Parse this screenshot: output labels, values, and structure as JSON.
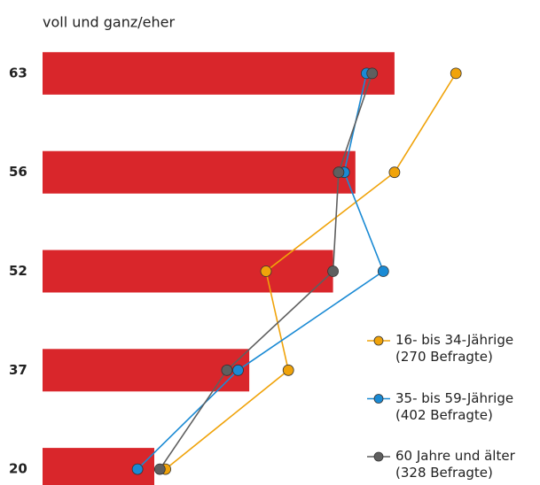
{
  "chart_data": {
    "type": "bar",
    "title": "voll und ganz/eher",
    "categories": [
      null,
      null,
      null,
      null,
      null
    ],
    "values": [
      63,
      56,
      52,
      37,
      20
    ],
    "color": "#d9262b",
    "xlim": [
      0,
      80
    ],
    "series": [
      {
        "name": "16- bis 34-Jährige\n(270 Befragte)",
        "color": "#f0a30a",
        "values": [
          74,
          63,
          40,
          44,
          22
        ]
      },
      {
        "name": "35- bis 59-Jährige\n(402 Befragte)",
        "color": "#1a8ad4",
        "values": [
          58,
          54,
          61,
          35,
          17
        ]
      },
      {
        "name": "60 Jahre und älter\n(328 Befragte)",
        "color": "#5f5f5f",
        "values": [
          59,
          53,
          52,
          33,
          21
        ]
      }
    ]
  }
}
